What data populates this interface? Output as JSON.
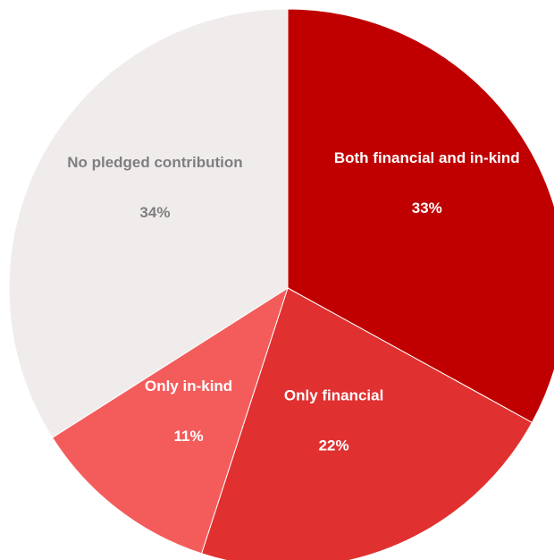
{
  "chart_data": {
    "type": "pie",
    "title": "",
    "start_angle_deg": 0,
    "direction": "clockwise",
    "slices": [
      {
        "label": "Both financial and in-kind",
        "percent_label": "33%",
        "value": 33,
        "color": "#C00000",
        "text_color": "#FFFFFF"
      },
      {
        "label": "Only financial",
        "percent_label": "22%",
        "value": 22,
        "color": "#E03030",
        "text_color": "#FFFFFF"
      },
      {
        "label": "Only in-kind",
        "percent_label": "11%",
        "value": 11,
        "color": "#F45C5C",
        "text_color": "#FFFFFF"
      },
      {
        "label": "No pledged contribution",
        "percent_label": "34%",
        "value": 34,
        "color": "#F0ECEC",
        "text_color": "#7F7F7F"
      }
    ],
    "legend": "none"
  }
}
